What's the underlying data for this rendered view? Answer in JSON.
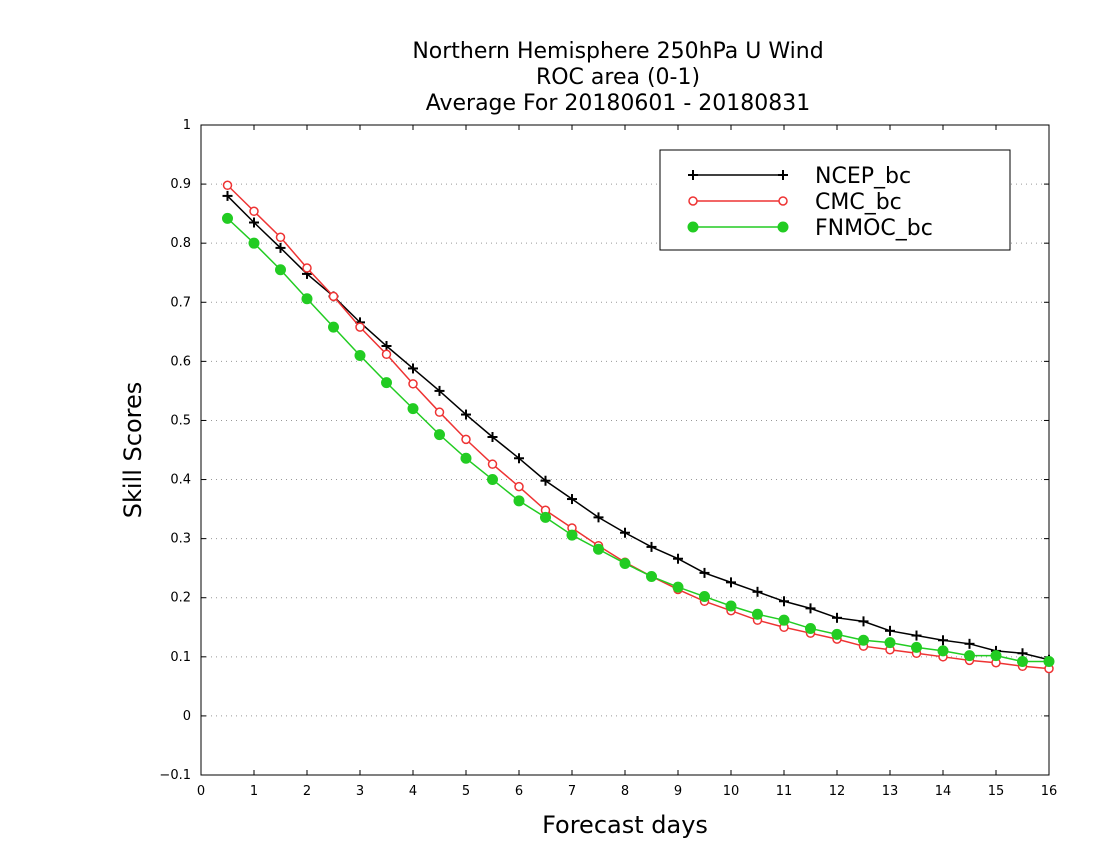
{
  "chart_data": {
    "type": "line",
    "title_lines": [
      "Northern Hemisphere 250hPa U Wind",
      "ROC area (0-1)",
      "Average For 20180601 - 20180831"
    ],
    "xlabel": "Forecast days",
    "ylabel": "Skill Scores",
    "xlim": [
      0,
      16
    ],
    "ylim": [
      -0.1,
      1
    ],
    "x_ticks": [
      "0",
      "1",
      "2",
      "3",
      "4",
      "5",
      "6",
      "7",
      "8",
      "9",
      "10",
      "11",
      "12",
      "13",
      "14",
      "15",
      "16"
    ],
    "y_ticks": [
      "−0.1",
      "0",
      "0.1",
      "0.2",
      "0.3",
      "0.4",
      "0.5",
      "0.6",
      "0.7",
      "0.8",
      "0.9",
      "1"
    ],
    "grid": "horizontal dotted",
    "legend_position": "top-right",
    "x": [
      0.5,
      1,
      1.5,
      2,
      2.5,
      3,
      3.5,
      4,
      4.5,
      5,
      5.5,
      6,
      6.5,
      7,
      7.5,
      8,
      8.5,
      9,
      9.5,
      10,
      10.5,
      11,
      11.5,
      12,
      12.5,
      13,
      13.5,
      14,
      14.5,
      15,
      15.5,
      16
    ],
    "series": [
      {
        "name": "NCEP_bc",
        "color": "#000000",
        "marker": "plus",
        "values": [
          0.88,
          0.835,
          0.792,
          0.748,
          0.71,
          0.666,
          0.626,
          0.588,
          0.55,
          0.51,
          0.472,
          0.436,
          0.398,
          0.367,
          0.336,
          0.31,
          0.286,
          0.266,
          0.242,
          0.226,
          0.21,
          0.194,
          0.182,
          0.166,
          0.16,
          0.144,
          0.136,
          0.128,
          0.122,
          0.11,
          0.106,
          0.095
        ]
      },
      {
        "name": "CMC_bc",
        "color": "#ee3333",
        "marker": "open-circle",
        "values": [
          0.898,
          0.854,
          0.81,
          0.758,
          0.71,
          0.658,
          0.612,
          0.562,
          0.514,
          0.468,
          0.426,
          0.388,
          0.348,
          0.318,
          0.288,
          0.26,
          0.236,
          0.214,
          0.194,
          0.178,
          0.162,
          0.15,
          0.14,
          0.13,
          0.118,
          0.112,
          0.106,
          0.1,
          0.094,
          0.09,
          0.084,
          0.08
        ]
      },
      {
        "name": "FNMOC_bc",
        "color": "#22cc22",
        "marker": "filled-circle",
        "values": [
          0.842,
          0.8,
          0.755,
          0.706,
          0.658,
          0.61,
          0.564,
          0.52,
          0.476,
          0.436,
          0.4,
          0.364,
          0.336,
          0.306,
          0.282,
          0.258,
          0.236,
          0.218,
          0.202,
          0.186,
          0.172,
          0.162,
          0.148,
          0.138,
          0.128,
          0.124,
          0.116,
          0.11,
          0.102,
          0.102,
          0.092,
          0.092
        ]
      }
    ]
  }
}
